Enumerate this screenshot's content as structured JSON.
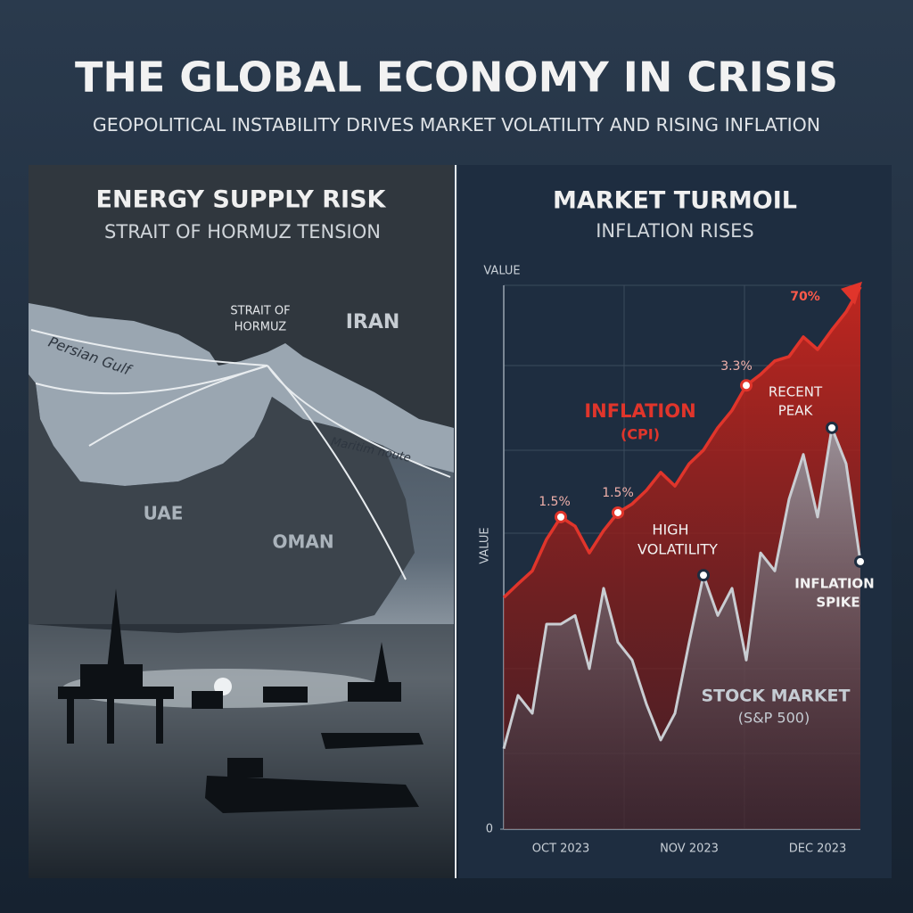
{
  "title": "THE GLOBAL ECONOMY IN CRISIS",
  "subtitle": "GEOPOLITICAL INSTABILITY DRIVES MARKET VOLATILITY AND RISING INFLATION",
  "left_panel": {
    "title": "ENERGY SUPPLY RISK",
    "subtitle": "STRAIT OF HORMUZ TENSION",
    "map_labels": [
      "STRAIT OF",
      "HORMUZ",
      "IRAN",
      "Persian Gulf",
      "Maritim noute",
      "UAE",
      "OMAN"
    ]
  },
  "right_panel": {
    "title": "MARKET TURMOIL",
    "subtitle": "INFLATION RISES"
  },
  "chart_data": {
    "type": "line",
    "y_label_top": "VALUE",
    "y_label": "VALUE",
    "categories": [
      null,
      null,
      null,
      null,
      "OCT 2023",
      null,
      null,
      null,
      null,
      null,
      null,
      null,
      null,
      "NOV 2023",
      null,
      null,
      null,
      null,
      null,
      null,
      null,
      null,
      "DEC 2023",
      null,
      null,
      null
    ],
    "series": [
      {
        "name": "INFLATION",
        "color": "#e0352b",
        "values": [
          42.6,
          45.1,
          47.5,
          53.3,
          57.4,
          55.7,
          50.8,
          54.9,
          58.2,
          59.8,
          62.3,
          65.6,
          63.1,
          67.2,
          69.7,
          73.8,
          77.0,
          81.6,
          83.6,
          86.1,
          86.9,
          90.5,
          88.2,
          91.8,
          95.1,
          99.7
        ]
      },
      {
        "name": "STOCK MARKET",
        "color": "#c9cdd2",
        "values": [
          14.8,
          24.6,
          21.3,
          37.7,
          37.7,
          39.3,
          29.5,
          44.3,
          34.4,
          31.1,
          23.0,
          16.4,
          21.3,
          34.4,
          46.7,
          39.3,
          44.3,
          31.1,
          50.8,
          47.5,
          60.7,
          68.9,
          57.4,
          73.8,
          67.2,
          49.2
        ]
      }
    ],
    "annotations": [
      "1.5%",
      "1.5%",
      "3.3%",
      "70%",
      "(CPI)",
      "HIGH",
      "VOLATILITY",
      "RECENT",
      "PEAK",
      "INFLATION",
      "SPIKE",
      "(S&P 500)"
    ],
    "ylim": [
      0,
      100
    ],
    "yticks": [
      0
    ]
  }
}
